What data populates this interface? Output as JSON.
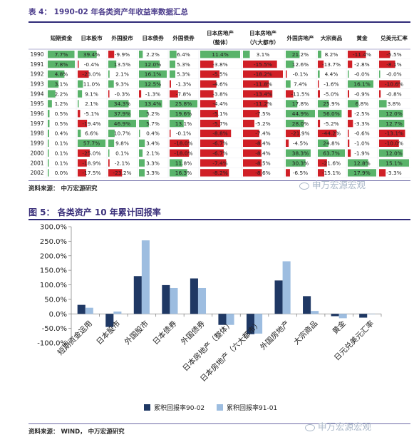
{
  "table": {
    "caption": "表 4： 1990-02 年各类资产年收益率数据汇总",
    "headers": [
      "",
      "短期资金",
      "日本股市",
      "外国股市",
      "日本债券",
      "外国债券",
      "日本房地产（整体）",
      "日本房地产（六大都市）",
      "外国房地产",
      "大宗商品",
      "黄金",
      "兑美元汇率"
    ],
    "rows": [
      [
        "1990",
        "7.7%",
        "39.4%",
        "-9.9%",
        "2.2%",
        "6.4%",
        "11.4%",
        "3.1%",
        "21.2%",
        "8.2%",
        "-11.4%",
        "-5.5%"
      ],
      [
        "1991",
        "7.8%",
        "-0.4%",
        "13.5%",
        "12.0%",
        "5.3%",
        "-3.8%",
        "-15.5%",
        "12.6%",
        "-13.7%",
        "-2.8%",
        "-8.1%"
      ],
      [
        "1992",
        "4.8%",
        "-23.0%",
        "2.1%",
        "16.1%",
        "5.3%",
        "-5.5%",
        "-18.2%",
        "-0.1%",
        "4.4%",
        "-0.0%",
        "-0.0%"
      ],
      [
        "1993",
        "3.1%",
        "11.0%",
        "9.3%",
        "12.5%",
        "-1.3%",
        "-4.6%",
        "-11.8%",
        "7.4%",
        "-1.6%",
        "16.1%",
        "-10.6%"
      ],
      [
        "1994",
        "2.2%",
        "9.1%",
        "-0.3%",
        "-1.3%",
        "-7.8%",
        "-3.8%",
        "-13.4%",
        "-11.5%",
        "-5.0%",
        "-0.9%",
        "-0.8%"
      ],
      [
        "1995",
        "1.2%",
        "2.1%",
        "34.3%",
        "13.4%",
        "25.8%",
        "-4.4%",
        "-11.2%",
        "17.8%",
        "25.9%",
        "6.8%",
        "3.8%"
      ],
      [
        "1996",
        "0.5%",
        "-5.1%",
        "37.9%",
        "5.2%",
        "19.6%",
        "-5.1%",
        "-7.5%",
        "44.9%",
        "56.0%",
        "-2.5%",
        "12.0%"
      ],
      [
        "1997",
        "0.5%",
        "-19.4%",
        "46.9%",
        "5.7%",
        "13.1%",
        "-5.7%",
        "-5.2%",
        "28.0%",
        "-5.2%",
        "-3.3%",
        "12.7%"
      ],
      [
        "1998",
        "0.4%",
        "6.6%",
        "10.7%",
        "0.4%",
        "-0.1%",
        "-8.8%",
        "-7.4%",
        "-21.9%",
        "-44.2%",
        "-0.6%",
        "-13.1%"
      ],
      [
        "1999",
        "0.1%",
        "57.7%",
        "9.8%",
        "3.4%",
        "-18.0%",
        "-6.7%",
        "-8.4%",
        "-4.5%",
        "24.8%",
        "-1.0%",
        "-10.0%"
      ],
      [
        "2000",
        "0.1%",
        "-25.0%",
        "0.1%",
        "2.1%",
        "-18.0%",
        "-6.7%",
        "-8.4%",
        "38.3%",
        "63.7%",
        "-1.9%",
        "12.0%"
      ],
      [
        "2001",
        "0.1%",
        "-18.9%",
        "-2.1%",
        "3.3%",
        "11.8%",
        "-7.4%",
        "-8.5%",
        "30.3%",
        "-21.6%",
        "12.8%",
        "15.1%"
      ],
      [
        "2002",
        "0.0%",
        "-17.5%",
        "-23.2%",
        "3.3%",
        "16.3%",
        "-8.2%",
        "-8.6%",
        "-6.5%",
        "-15.1%",
        "17.9%",
        "-3.3%"
      ]
    ],
    "source": "资料来源： 中万宏源研究"
  },
  "figure": {
    "caption": "图 5： 各类资产 10 年累计回报率",
    "source": "资料来源： WIND， 中万宏源研究"
  },
  "watermark": "申万宏源宏观",
  "colors": {
    "series1": "#1f3864",
    "series2": "#9dbde0",
    "positive": "#59b36a",
    "negative": "#d01f26",
    "title": "#4b3c8b"
  },
  "chart_data": {
    "type": "bar",
    "categories": [
      "短期资金运用",
      "日本股市",
      "外国股市",
      "日本债券",
      "外国债券",
      "日本房地产（整体）",
      "日本房地产（六大都市）",
      "外国房地产",
      "大宗商品",
      "黄金",
      "日元兑美元汇率"
    ],
    "series": [
      {
        "name": "累积回报率90-02",
        "values": [
          31,
          -45,
          130,
          99,
          122,
          -38,
          -70,
          115,
          61,
          -8,
          -13
        ]
      },
      {
        "name": "累积回报率91-01",
        "values": [
          21,
          8,
          253,
          89,
          89,
          -38,
          -68,
          181,
          10,
          -15,
          0
        ]
      }
    ],
    "ylim": [
      -100,
      300
    ],
    "yticks": [
      -100,
      -50,
      0,
      50,
      100,
      150,
      200,
      250,
      300
    ],
    "ytick_labels": [
      "-100.0%",
      "-50.0%",
      "0.0%",
      "50.0%",
      "100.0%",
      "150.0%",
      "200.0%",
      "250.0%",
      "300.0%"
    ],
    "legend_position": "bottom"
  }
}
